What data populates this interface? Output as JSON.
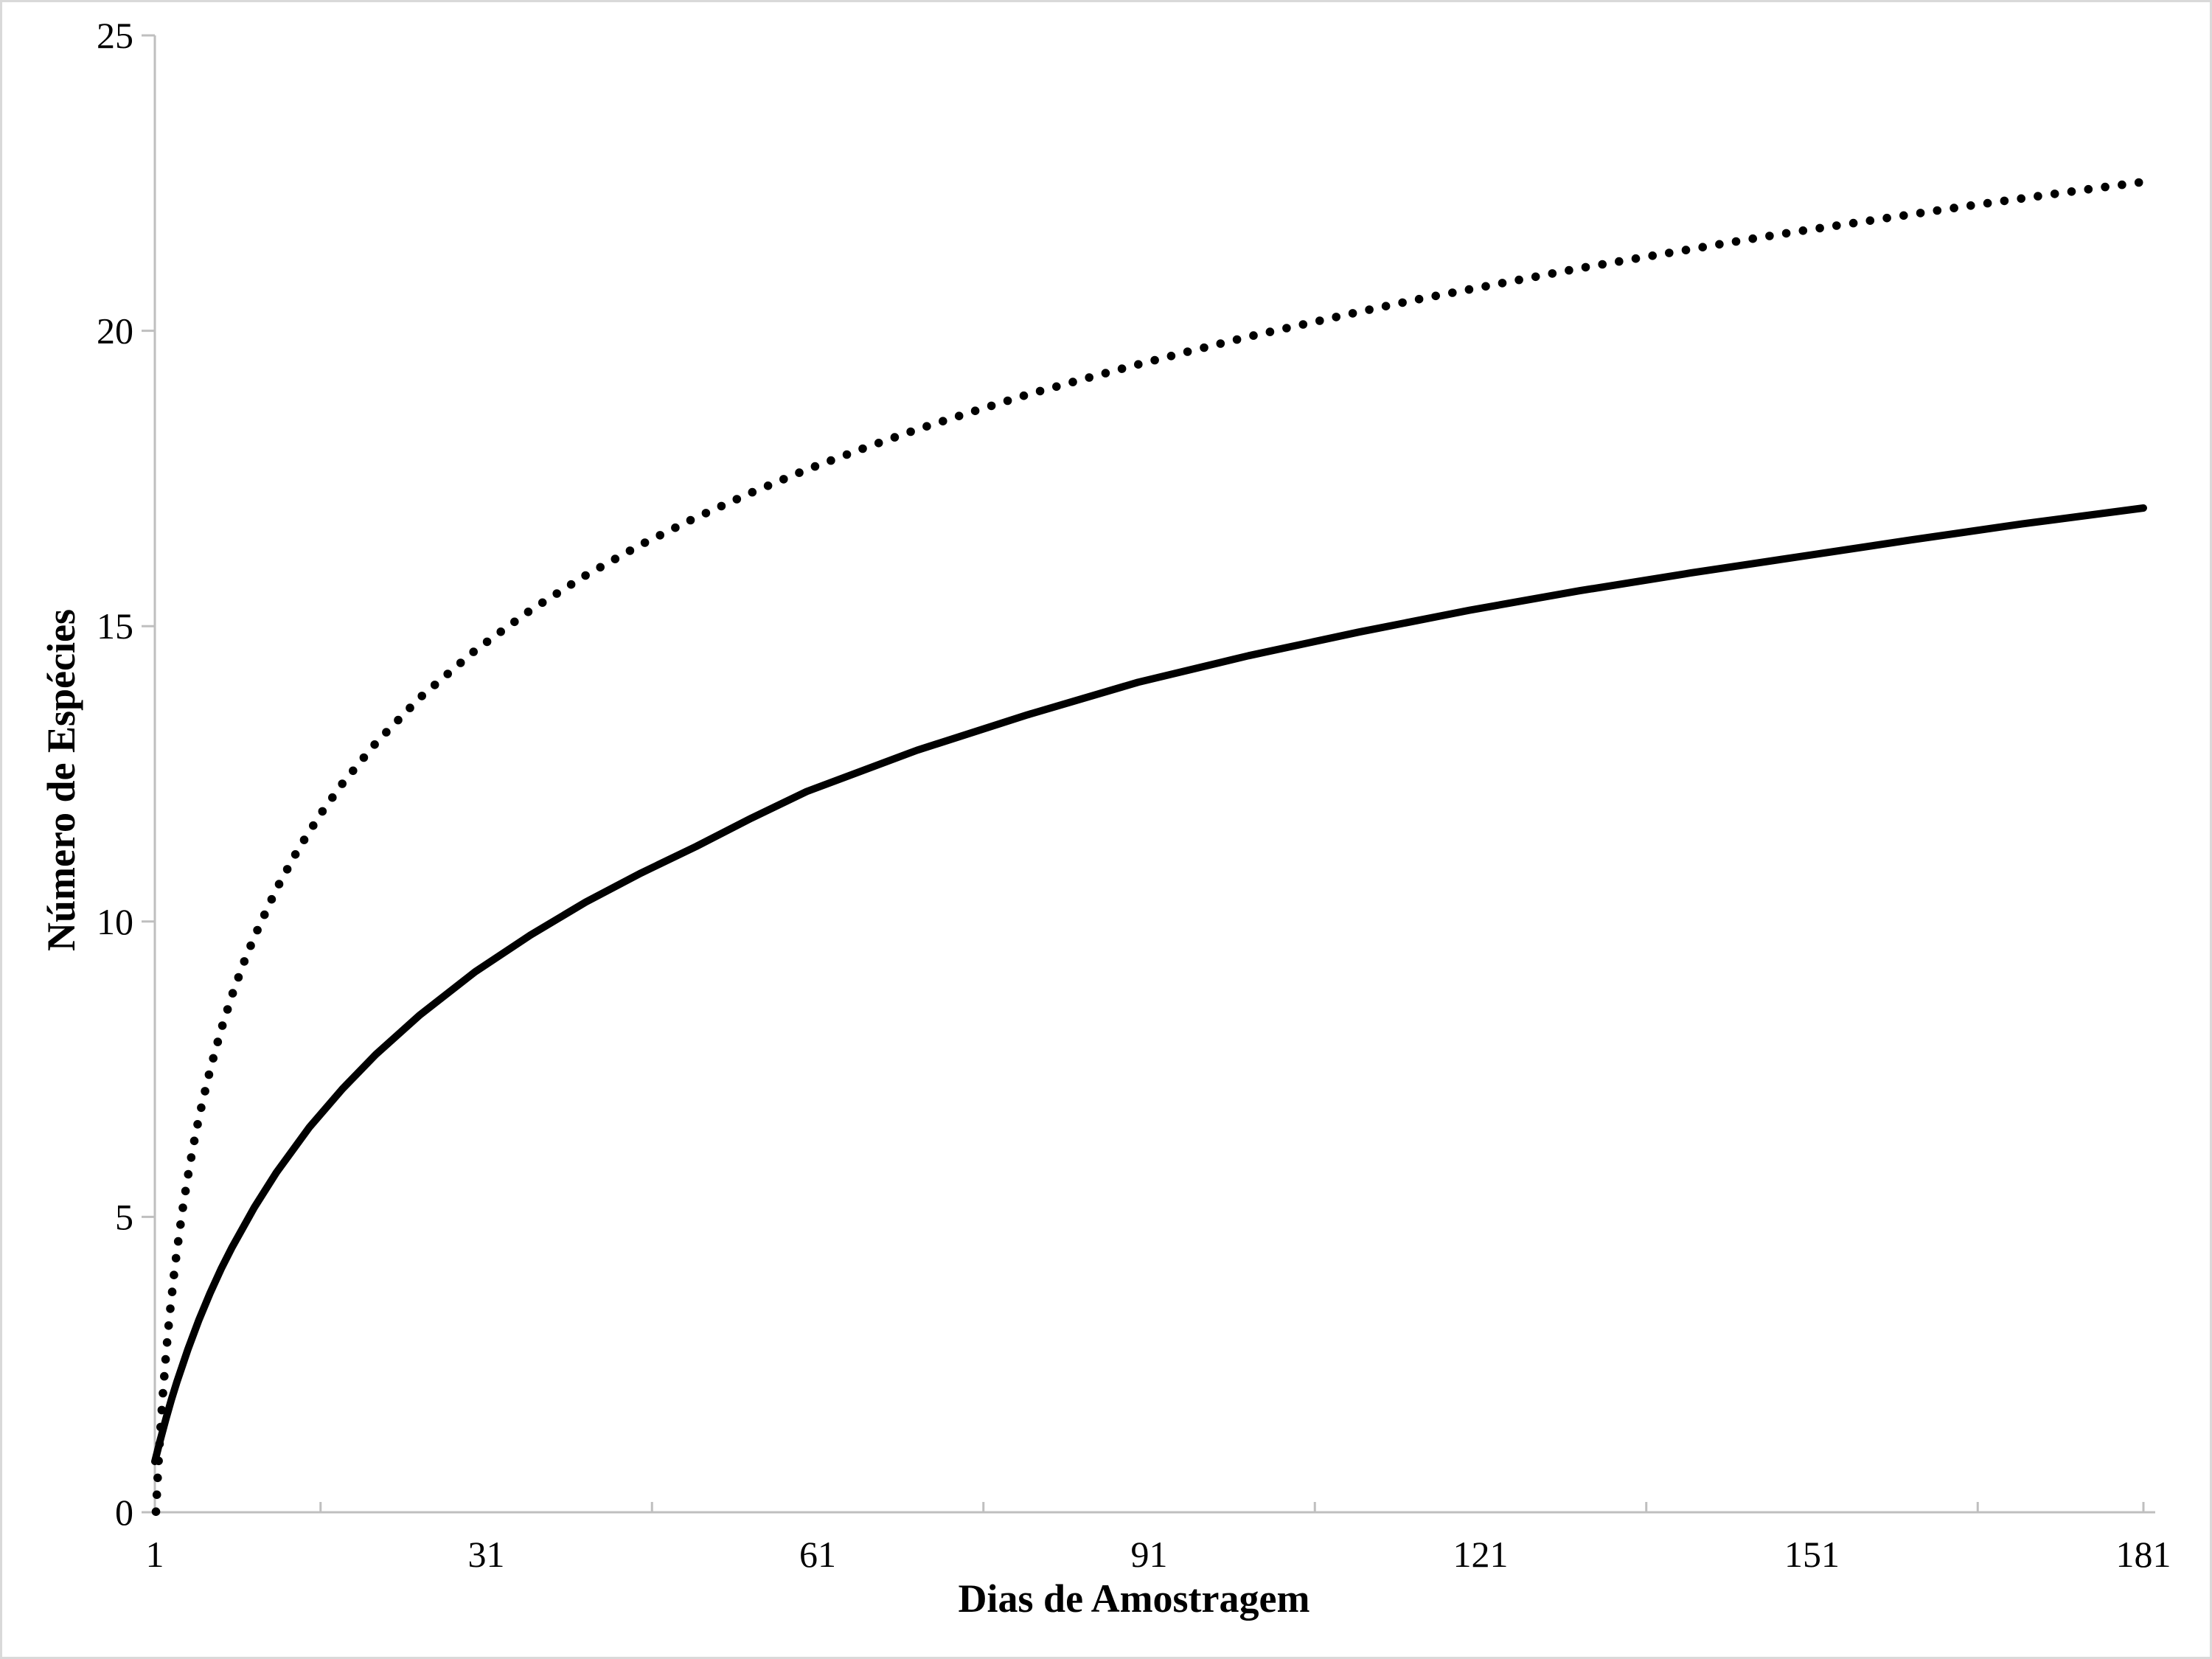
{
  "figure": {
    "background": "#ffffff",
    "border_color": "#d9d9d9",
    "axis_color": "#bfbfbf",
    "text_color": "#000000"
  },
  "chart_data": {
    "type": "line",
    "title": "",
    "xlabel": "Dias de Amostragem",
    "ylabel": "Número de Espécies",
    "x_ticks": [
      1,
      31,
      61,
      91,
      121,
      151,
      181
    ],
    "y_ticks": [
      0,
      5,
      10,
      15,
      20,
      25
    ],
    "xlim": [
      1,
      182
    ],
    "ylim": [
      0,
      25
    ],
    "grid": false,
    "legend": "none",
    "series": [
      {
        "id": "upper-dotted-curve",
        "line_style": "dotted",
        "marker": "round-dot",
        "color": "#000000",
        "points": [
          [
            1.1,
            0.01
          ],
          [
            1.3,
            0.75
          ],
          [
            1.5,
            1.38
          ],
          [
            1.75,
            2.06
          ],
          [
            2,
            2.65
          ],
          [
            2.3,
            3.26
          ],
          [
            2.7,
            3.97
          ],
          [
            3,
            4.43
          ],
          [
            3.5,
            5.11
          ],
          [
            4,
            5.7
          ],
          [
            4.5,
            6.22
          ],
          [
            5,
            6.69
          ],
          [
            6,
            7.49
          ],
          [
            7,
            8.17
          ],
          [
            8,
            8.76
          ],
          [
            9,
            9.28
          ],
          [
            10,
            9.74
          ],
          [
            12,
            10.55
          ],
          [
            14,
            11.23
          ],
          [
            16,
            11.82
          ],
          [
            18,
            12.34
          ],
          [
            21,
            13.02
          ],
          [
            25,
            13.79
          ],
          [
            30,
            14.59
          ],
          [
            35,
            15.27
          ],
          [
            40,
            15.86
          ],
          [
            45,
            16.38
          ],
          [
            50,
            16.84
          ],
          [
            55,
            17.26
          ],
          [
            60,
            17.65
          ],
          [
            65,
            18.0
          ],
          [
            70,
            18.33
          ],
          [
            75,
            18.63
          ],
          [
            80,
            18.92
          ],
          [
            85,
            19.18
          ],
          [
            90,
            19.43
          ],
          [
            95,
            19.67
          ],
          [
            100,
            19.9
          ],
          [
            105,
            20.11
          ],
          [
            110,
            20.32
          ],
          [
            115,
            20.52
          ],
          [
            120,
            20.7
          ],
          [
            125,
            20.88
          ],
          [
            130,
            21.06
          ],
          [
            135,
            21.22
          ],
          [
            140,
            21.38
          ],
          [
            145,
            21.54
          ],
          [
            150,
            21.69
          ],
          [
            155,
            21.83
          ],
          [
            160,
            21.97
          ],
          [
            165,
            22.11
          ],
          [
            170,
            22.24
          ],
          [
            175,
            22.37
          ],
          [
            181,
            22.52
          ]
        ]
      },
      {
        "id": "lower-solid-curve",
        "line_style": "solid",
        "marker": "none",
        "color": "#000000",
        "points": [
          [
            1,
            0.86
          ],
          [
            1.5,
            1.23
          ],
          [
            2,
            1.58
          ],
          [
            2.5,
            1.91
          ],
          [
            3,
            2.21
          ],
          [
            4,
            2.76
          ],
          [
            5,
            3.26
          ],
          [
            6,
            3.71
          ],
          [
            7,
            4.12
          ],
          [
            8,
            4.49
          ],
          [
            10,
            5.16
          ],
          [
            12,
            5.75
          ],
          [
            15,
            6.52
          ],
          [
            18,
            7.17
          ],
          [
            21,
            7.75
          ],
          [
            25,
            8.42
          ],
          [
            30,
            9.15
          ],
          [
            35,
            9.77
          ],
          [
            40,
            10.33
          ],
          [
            45,
            10.82
          ],
          [
            50,
            11.27
          ],
          [
            55,
            11.75
          ],
          [
            60,
            12.2
          ],
          [
            70,
            12.9
          ],
          [
            80,
            13.5
          ],
          [
            90,
            14.05
          ],
          [
            100,
            14.5
          ],
          [
            110,
            14.9
          ],
          [
            120,
            15.27
          ],
          [
            130,
            15.6
          ],
          [
            140,
            15.9
          ],
          [
            150,
            16.18
          ],
          [
            160,
            16.46
          ],
          [
            170,
            16.73
          ],
          [
            181,
            17.0
          ]
        ]
      }
    ]
  }
}
